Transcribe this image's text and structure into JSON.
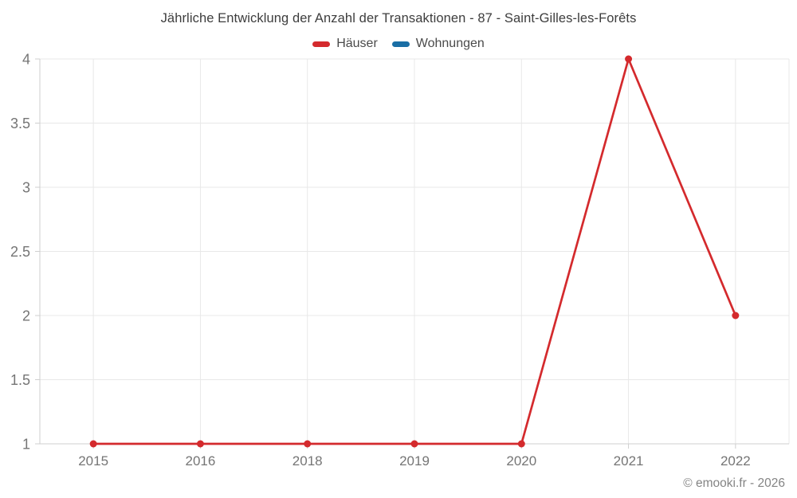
{
  "title": "Jährliche Entwicklung der Anzahl der Transaktionen - 87 - Saint-Gilles-les-Forêts",
  "legend": {
    "items": [
      {
        "label": "Häuser",
        "color": "#d42a2d"
      },
      {
        "label": "Wohnungen",
        "color": "#1a6ea5"
      }
    ]
  },
  "footer": {
    "credit": "© emooki.fr - 2026"
  },
  "chart_data": {
    "type": "line",
    "title": "Jährliche Entwicklung der Anzahl der Transaktionen - 87 - Saint-Gilles-les-Forêts",
    "categories": [
      "2015",
      "2016",
      "2018",
      "2019",
      "2020",
      "2021",
      "2022"
    ],
    "series": [
      {
        "name": "Häuser",
        "color": "#d42a2d",
        "values": [
          1,
          1,
          1,
          1,
          1,
          4,
          2
        ]
      },
      {
        "name": "Wohnungen",
        "color": "#1a6ea5",
        "values": []
      }
    ],
    "xlabel": "",
    "ylabel": "",
    "ylim": [
      1,
      4
    ],
    "y_ticks": [
      1,
      1.5,
      2,
      2.5,
      3,
      3.5,
      4
    ],
    "y_tick_labels": [
      "1",
      "1.5",
      "2",
      "2.5",
      "3",
      "3.5",
      "4"
    ],
    "grid": true,
    "legend_position": "top"
  },
  "colors": {
    "background": "#ffffff",
    "grid": "#e8e8e8",
    "axis": "#cfcfcf",
    "tick_label": "#757575",
    "title_text": "#3d3d3d",
    "legend_text": "#4a4a4a",
    "footer_text": "#848484"
  }
}
